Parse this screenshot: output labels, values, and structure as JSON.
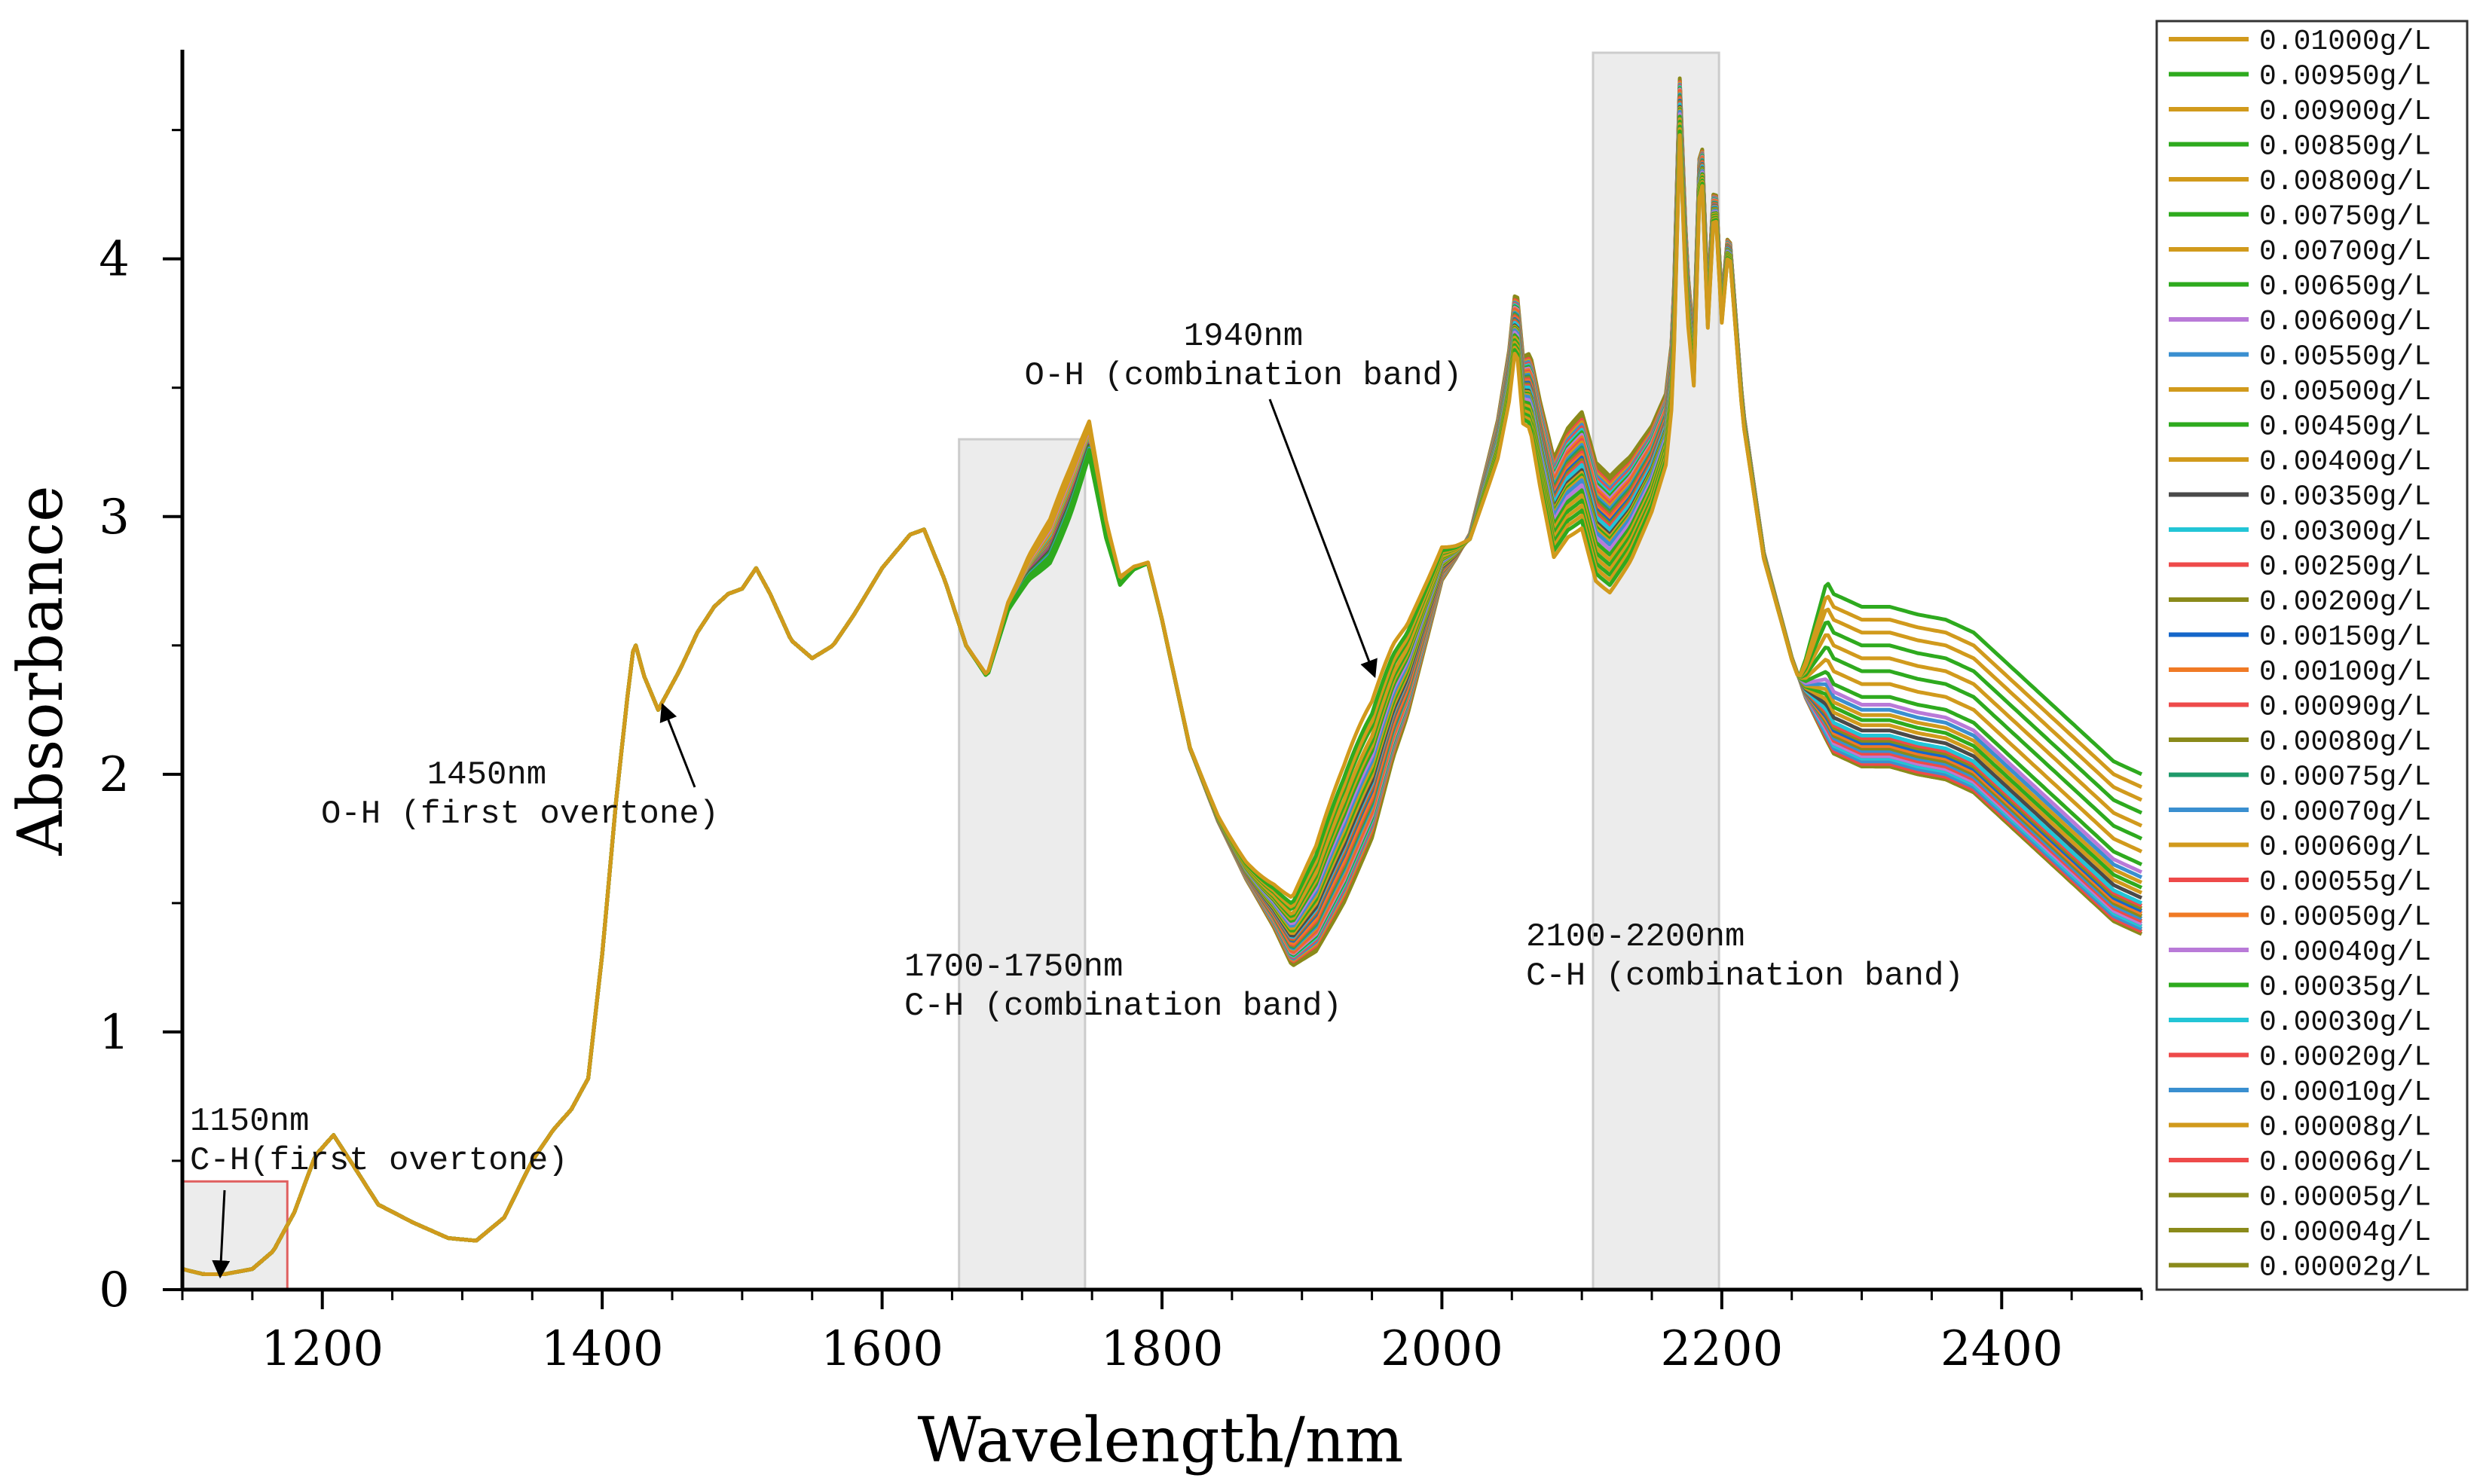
{
  "chart_data": {
    "type": "line",
    "title": "",
    "xlabel": "Wavelength/nm",
    "ylabel": "Absorbance",
    "xlim": [
      1100,
      2500
    ],
    "ylim": [
      0,
      4.8
    ],
    "x_ticks": [
      1200,
      1400,
      1600,
      1800,
      2000,
      2200,
      2400
    ],
    "x_tick_labels": [
      "1200",
      "1400",
      "1600",
      "1800",
      "2000",
      "2200",
      "2400"
    ],
    "y_ticks": [
      0,
      1,
      2,
      3,
      4
    ],
    "y_tick_labels": [
      "0",
      "1",
      "2",
      "3",
      "4"
    ],
    "grid": false,
    "legend_position": "right",
    "shaded_regions": [
      {
        "x_start": 1100,
        "x_end": 1175,
        "y_start": 0,
        "y_end": 0.42,
        "outline": "#e06060"
      },
      {
        "x_start": 1655,
        "x_end": 1745,
        "y_start": 0,
        "y_end": 3.3,
        "outline": "#cccccc"
      },
      {
        "x_start": 2108,
        "x_end": 2198,
        "y_start": 0,
        "y_end": 4.8,
        "outline": "#cccccc"
      }
    ],
    "annotations": [
      {
        "lines": [
          "1150nm",
          "C-H(first overtone)"
        ],
        "arrow_to": [
          1127,
          0.05
        ]
      },
      {
        "lines": [
          "1450nm",
          "O-H (first overtone)"
        ],
        "arrow_to": [
          1443,
          2.27
        ]
      },
      {
        "lines": [
          "1700-1750nm",
          "C-H (combination band)"
        ]
      },
      {
        "lines": [
          "1940nm",
          "O-H (combination band)"
        ],
        "arrow_to": [
          1952,
          2.38
        ]
      },
      {
        "lines": [
          "2100-2200nm",
          "C-H (combination band)"
        ]
      }
    ],
    "base_curve": {
      "x": [
        1100,
        1115,
        1130,
        1150,
        1165,
        1180,
        1195,
        1208,
        1220,
        1240,
        1265,
        1290,
        1310,
        1330,
        1350,
        1365,
        1378,
        1390,
        1400,
        1410,
        1418,
        1423,
        1430,
        1440,
        1455,
        1468,
        1480,
        1490,
        1500,
        1510,
        1520,
        1535,
        1550,
        1565,
        1580,
        1600,
        1620,
        1630,
        1645,
        1660,
        1675,
        1690,
        1705,
        1720,
        1735,
        1748,
        1760,
        1770,
        1780,
        1790,
        1800,
        1820,
        1840,
        1860,
        1880,
        1893,
        1910,
        1930,
        1950,
        1965,
        1975,
        1990,
        2000,
        2010,
        2020,
        2030,
        2040,
        2048,
        2053,
        2058,
        2063,
        2070,
        2080,
        2090,
        2100,
        2110,
        2120,
        2135,
        2150,
        2160,
        2165,
        2170,
        2175,
        2180,
        2185,
        2190,
        2195,
        2200,
        2205,
        2215,
        2230,
        2250,
        2260,
        2280,
        2300,
        2320,
        2340,
        2360,
        2380,
        2400,
        2420,
        2440,
        2460,
        2480,
        2500
      ],
      "y": [
        0.08,
        0.06,
        0.06,
        0.08,
        0.15,
        0.3,
        0.52,
        0.6,
        0.5,
        0.33,
        0.26,
        0.2,
        0.19,
        0.28,
        0.5,
        0.62,
        0.7,
        0.82,
        1.3,
        1.9,
        2.3,
        2.52,
        2.38,
        2.25,
        2.4,
        2.55,
        2.65,
        2.7,
        2.72,
        2.8,
        2.7,
        2.52,
        2.45,
        2.5,
        2.62,
        2.8,
        2.93,
        2.95,
        2.75,
        2.5,
        2.38,
        2.65,
        2.8,
        2.9,
        3.1,
        3.3,
        2.95,
        2.75,
        2.8,
        2.82,
        2.6,
        2.1,
        1.82,
        1.6,
        1.42,
        1.28,
        1.35,
        1.55,
        1.8,
        2.1,
        2.25,
        2.55,
        2.75,
        2.82,
        2.9,
        3.1,
        3.3,
        3.55,
        3.8,
        3.5,
        3.5,
        3.3,
        3.05,
        3.15,
        3.2,
        3.0,
        2.95,
        3.05,
        3.2,
        3.35,
        3.6,
        4.6,
        3.9,
        3.6,
        4.5,
        3.8,
        4.3,
        3.8,
        4.1,
        3.4,
        2.85,
        2.45,
        2.3,
        2.1,
        2.05,
        2.05,
        2.02,
        2.0,
        1.95,
        1.85,
        1.75,
        1.65,
        1.55,
        1.45,
        1.4
      ]
    },
    "series": [
      {
        "name": "0.01000g/L",
        "color": "#d19a1c",
        "offset_1940": 0.5,
        "offset_2300": 0.55,
        "offset_2100": -0.25
      },
      {
        "name": "0.00950g/L",
        "color": "#2eaa1e",
        "offset_1940": 0.45,
        "offset_2300": 0.6,
        "offset_2100": -0.22
      },
      {
        "name": "0.00900g/L",
        "color": "#d19a1c",
        "offset_1940": 0.42,
        "offset_2300": 0.5,
        "offset_2100": -0.2
      },
      {
        "name": "0.00850g/L",
        "color": "#2eaa1e",
        "offset_1940": 0.4,
        "offset_2300": 0.45,
        "offset_2100": -0.18
      },
      {
        "name": "0.00800g/L",
        "color": "#d19a1c",
        "offset_1940": 0.36,
        "offset_2300": 0.4,
        "offset_2100": -0.16
      },
      {
        "name": "0.00750g/L",
        "color": "#2eaa1e",
        "offset_1940": 0.34,
        "offset_2300": 0.35,
        "offset_2100": -0.14
      },
      {
        "name": "0.00700g/L",
        "color": "#d19a1c",
        "offset_1940": 0.32,
        "offset_2300": 0.3,
        "offset_2100": -0.12
      },
      {
        "name": "0.00650g/L",
        "color": "#2eaa1e",
        "offset_1940": 0.3,
        "offset_2300": 0.25,
        "offset_2100": -0.1
      },
      {
        "name": "0.00600g/L",
        "color": "#b97ad8",
        "offset_1940": 0.28,
        "offset_2300": 0.22,
        "offset_2100": -0.08
      },
      {
        "name": "0.00550g/L",
        "color": "#3a8fd0",
        "offset_1940": 0.26,
        "offset_2300": 0.2,
        "offset_2100": -0.06
      },
      {
        "name": "0.00500g/L",
        "color": "#d19a1c",
        "offset_1940": 0.24,
        "offset_2300": 0.18,
        "offset_2100": -0.05
      },
      {
        "name": "0.00450g/L",
        "color": "#2eaa1e",
        "offset_1940": 0.22,
        "offset_2300": 0.16,
        "offset_2100": -0.04
      },
      {
        "name": "0.00400g/L",
        "color": "#d19a1c",
        "offset_1940": 0.2,
        "offset_2300": 0.14,
        "offset_2100": -0.03
      },
      {
        "name": "0.00350g/L",
        "color": "#4a4a4a",
        "offset_1940": 0.18,
        "offset_2300": 0.12,
        "offset_2100": -0.02
      },
      {
        "name": "0.00300g/L",
        "color": "#22c5d6",
        "offset_1940": 0.17,
        "offset_2300": 0.1,
        "offset_2100": 0.0
      },
      {
        "name": "0.00250g/L",
        "color": "#ee4a4a",
        "offset_1940": 0.16,
        "offset_2300": 0.09,
        "offset_2100": 0.01
      },
      {
        "name": "0.00200g/L",
        "color": "#8a8a1a",
        "offset_1940": 0.15,
        "offset_2300": 0.08,
        "offset_2100": 0.02
      },
      {
        "name": "0.00150g/L",
        "color": "#1566c9",
        "offset_1940": 0.14,
        "offset_2300": 0.07,
        "offset_2100": 0.03
      },
      {
        "name": "0.00100g/L",
        "color": "#f07a25",
        "offset_1940": 0.12,
        "offset_2300": 0.06,
        "offset_2100": 0.04
      },
      {
        "name": "0.00090g/L",
        "color": "#ee4a4a",
        "offset_1940": 0.11,
        "offset_2300": 0.06,
        "offset_2100": 0.05
      },
      {
        "name": "0.00080g/L",
        "color": "#8a8a1a",
        "offset_1940": 0.1,
        "offset_2300": 0.05,
        "offset_2100": 0.06
      },
      {
        "name": "0.00075g/L",
        "color": "#1f9a6a",
        "offset_1940": 0.09,
        "offset_2300": 0.05,
        "offset_2100": 0.07
      },
      {
        "name": "0.00070g/L",
        "color": "#3a8fd0",
        "offset_1940": 0.08,
        "offset_2300": 0.04,
        "offset_2100": 0.08
      },
      {
        "name": "0.00060g/L",
        "color": "#d19a1c",
        "offset_1940": 0.07,
        "offset_2300": 0.04,
        "offset_2100": 0.09
      },
      {
        "name": "0.00055g/L",
        "color": "#ee4a4a",
        "offset_1940": 0.06,
        "offset_2300": 0.03,
        "offset_2100": 0.1
      },
      {
        "name": "0.00050g/L",
        "color": "#f07a25",
        "offset_1940": 0.05,
        "offset_2300": 0.03,
        "offset_2100": 0.11
      },
      {
        "name": "0.00040g/L",
        "color": "#b97ad8",
        "offset_1940": 0.04,
        "offset_2300": 0.02,
        "offset_2100": 0.12
      },
      {
        "name": "0.00035g/L",
        "color": "#2eaa1e",
        "offset_1940": 0.03,
        "offset_2300": 0.02,
        "offset_2100": 0.13
      },
      {
        "name": "0.00030g/L",
        "color": "#22c5d6",
        "offset_1940": 0.02,
        "offset_2300": 0.01,
        "offset_2100": 0.14
      },
      {
        "name": "0.00020g/L",
        "color": "#ee4a4a",
        "offset_1940": 0.01,
        "offset_2300": 0.01,
        "offset_2100": 0.15
      },
      {
        "name": "0.00010g/L",
        "color": "#3a8fd0",
        "offset_1940": 0.0,
        "offset_2300": 0.0,
        "offset_2100": 0.16
      },
      {
        "name": "0.00008g/L",
        "color": "#d19a1c",
        "offset_1940": -0.01,
        "offset_2300": 0.0,
        "offset_2100": 0.17
      },
      {
        "name": "0.00006g/L",
        "color": "#ee4a4a",
        "offset_1940": -0.02,
        "offset_2300": -0.01,
        "offset_2100": 0.18
      },
      {
        "name": "0.00005g/L",
        "color": "#8a8a1a",
        "offset_1940": -0.03,
        "offset_2300": -0.01,
        "offset_2100": 0.19
      },
      {
        "name": "0.00004g/L",
        "color": "#8a8a1a",
        "offset_1940": -0.04,
        "offset_2300": -0.02,
        "offset_2100": 0.2
      },
      {
        "name": "0.00002g/L",
        "color": "#8a8a1a",
        "offset_1940": -0.05,
        "offset_2300": -0.02,
        "offset_2100": 0.21
      }
    ]
  }
}
